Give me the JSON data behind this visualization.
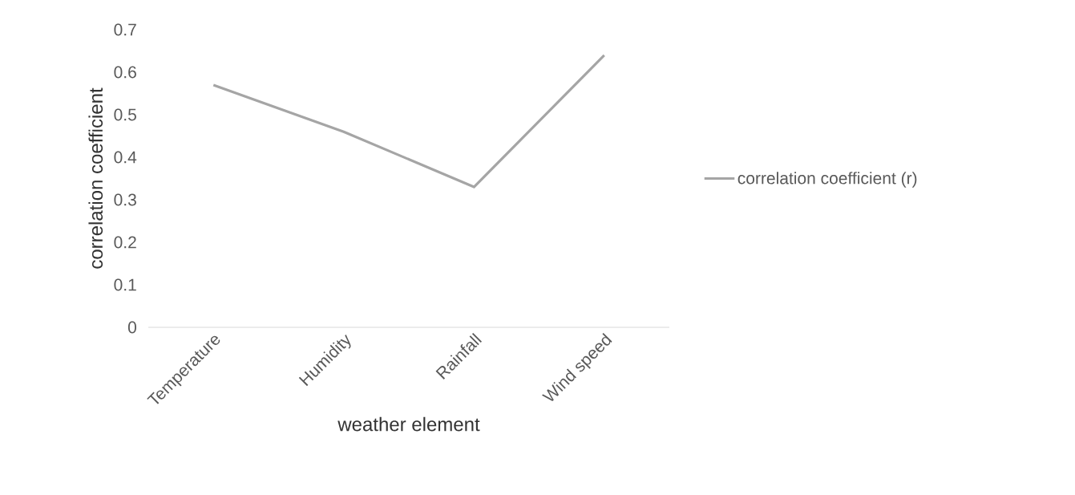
{
  "chart_data": {
    "type": "line",
    "xlabel": "weather element",
    "ylabel": "correlation coefficient",
    "categories": [
      "Temperature",
      "Humidity",
      "Rainfall",
      "Wind speed"
    ],
    "series": [
      {
        "name": "correlation coefficient (r)",
        "color": "#a5a5a5",
        "values": [
          0.57,
          0.46,
          0.33,
          0.64
        ]
      }
    ],
    "ylim": [
      0,
      0.7
    ],
    "yticks": [
      0,
      0.1,
      0.2,
      0.3,
      0.4,
      0.5,
      0.6,
      0.7
    ],
    "grid": false,
    "legend": "right",
    "marker": "none",
    "line_style": "solid"
  }
}
